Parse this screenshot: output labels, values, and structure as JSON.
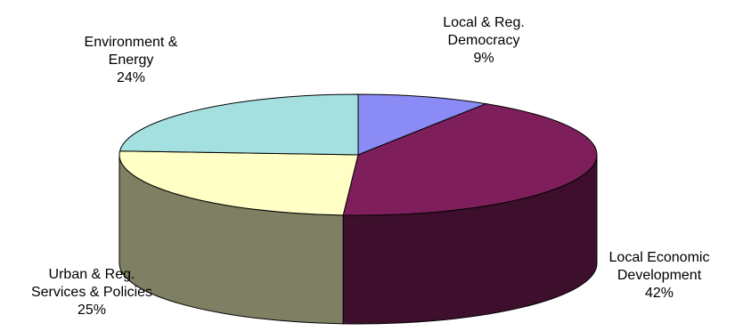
{
  "chart_data": {
    "type": "pie",
    "title": "",
    "style": "3d",
    "slices": [
      {
        "label_lines": [
          "Local & Reg.",
          "Democracy"
        ],
        "percent_label": "9%",
        "value": 9,
        "color": "#8B8BF5",
        "side_color": "#5B5BB0"
      },
      {
        "label_lines": [
          "Local Economic",
          "Development"
        ],
        "percent_label": "42%",
        "value": 42,
        "color": "#7E1F5C",
        "side_color": "#3E0F2D"
      },
      {
        "label_lines": [
          "Urban & Reg.",
          "Services & Policies"
        ],
        "percent_label": "25%",
        "value": 25,
        "color": "#FFFFC6",
        "side_color": "#7F7F63"
      },
      {
        "label_lines": [
          "Environment &",
          "Energy"
        ],
        "percent_label": "24%",
        "value": 24,
        "color": "#A5E0E0",
        "side_color": "#52706F"
      }
    ]
  }
}
